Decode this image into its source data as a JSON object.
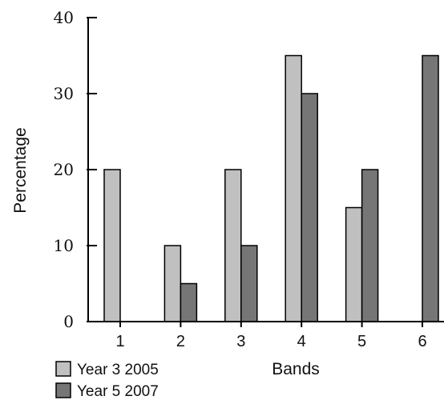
{
  "chart_data": {
    "type": "bar",
    "title": "",
    "xlabel": "Bands",
    "ylabel": "Percentage",
    "categories": [
      "1",
      "2",
      "3",
      "4",
      "5",
      "6"
    ],
    "ylim": [
      0,
      40
    ],
    "yticks": [
      "0",
      "10",
      "20",
      "30",
      "40"
    ],
    "grid": false,
    "legend_position": "bottom-left",
    "series": [
      {
        "name": "Year 3 2005",
        "color": "#c0c0c0",
        "values": [
          20,
          10,
          20,
          35,
          15,
          0
        ]
      },
      {
        "name": "Year 5 2007",
        "color": "#767676",
        "values": [
          0,
          5,
          10,
          30,
          20,
          35
        ]
      }
    ]
  }
}
